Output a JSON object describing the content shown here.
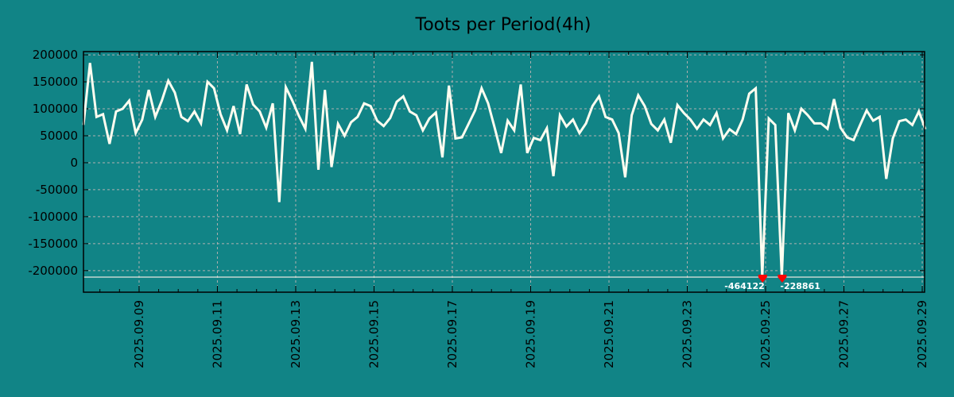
{
  "chart_data": {
    "type": "line",
    "title": "Toots per Period(4h)",
    "xlabel": "",
    "ylabel": "",
    "x_units": "day of September 2025",
    "x_start": 7.58,
    "x_step": 0.16667,
    "xlim": [
      7.58,
      29.06
    ],
    "ylim": [
      -240000,
      206000
    ],
    "grid": true,
    "legend": "none",
    "clip_value": -212000,
    "y_ticks": [
      200000,
      150000,
      100000,
      50000,
      0,
      -50000,
      -100000,
      -150000,
      -200000
    ],
    "y_tick_labels": [
      "200000",
      "150000",
      "100000",
      "50000",
      "0",
      "-50000",
      "-100000",
      "-150000",
      "-200000"
    ],
    "x_ticks": [
      9,
      11,
      13,
      15,
      17,
      19,
      21,
      23,
      25,
      27,
      29
    ],
    "x_tick_labels": [
      "2025.09.09",
      "2025.09.11",
      "2025.09.13",
      "2025.09.15",
      "2025.09.17",
      "2025.09.19",
      "2025.09.21",
      "2025.09.23",
      "2025.09.25",
      "2025.09.27",
      "2025.09.29"
    ],
    "series": [
      {
        "name": "toots",
        "color": "#fffdf0",
        "values": [
          70000,
          185000,
          85000,
          90000,
          35000,
          95000,
          100000,
          115000,
          55000,
          80000,
          135000,
          85000,
          115000,
          152000,
          130000,
          85000,
          77000,
          95000,
          73000,
          150000,
          138000,
          90000,
          60000,
          105000,
          53000,
          145000,
          108000,
          95000,
          65000,
          110000,
          -73000,
          140000,
          115000,
          87000,
          63000,
          187000,
          -13000,
          135000,
          -8000,
          72000,
          50000,
          75000,
          85000,
          110000,
          105000,
          78000,
          68000,
          83000,
          113000,
          123000,
          95000,
          88000,
          60000,
          82000,
          93000,
          10000,
          143000,
          45000,
          47000,
          72000,
          97000,
          138000,
          110000,
          65000,
          18000,
          78000,
          60000,
          145000,
          18000,
          46000,
          42000,
          64000,
          -25000,
          88000,
          67000,
          80000,
          55000,
          73000,
          105000,
          123000,
          85000,
          80000,
          55000,
          -27000,
          88000,
          125000,
          105000,
          72000,
          60000,
          80000,
          37000,
          107000,
          92000,
          80000,
          63000,
          80000,
          70000,
          92000,
          45000,
          62000,
          53000,
          80000,
          128000,
          138000,
          -464122,
          82000,
          70000,
          -228861,
          92000,
          60000,
          100000,
          88000,
          73000,
          73000,
          63000,
          118000,
          65000,
          47000,
          42000,
          70000,
          97000,
          78000,
          85000,
          -30000,
          45000,
          77000,
          80000,
          70000,
          95000,
          62000
        ]
      }
    ],
    "annotations": [
      {
        "index": 104,
        "label": "-464122",
        "color": "#ff0000"
      },
      {
        "index": 107,
        "label": "-228861",
        "color": "#ff0000"
      }
    ]
  }
}
